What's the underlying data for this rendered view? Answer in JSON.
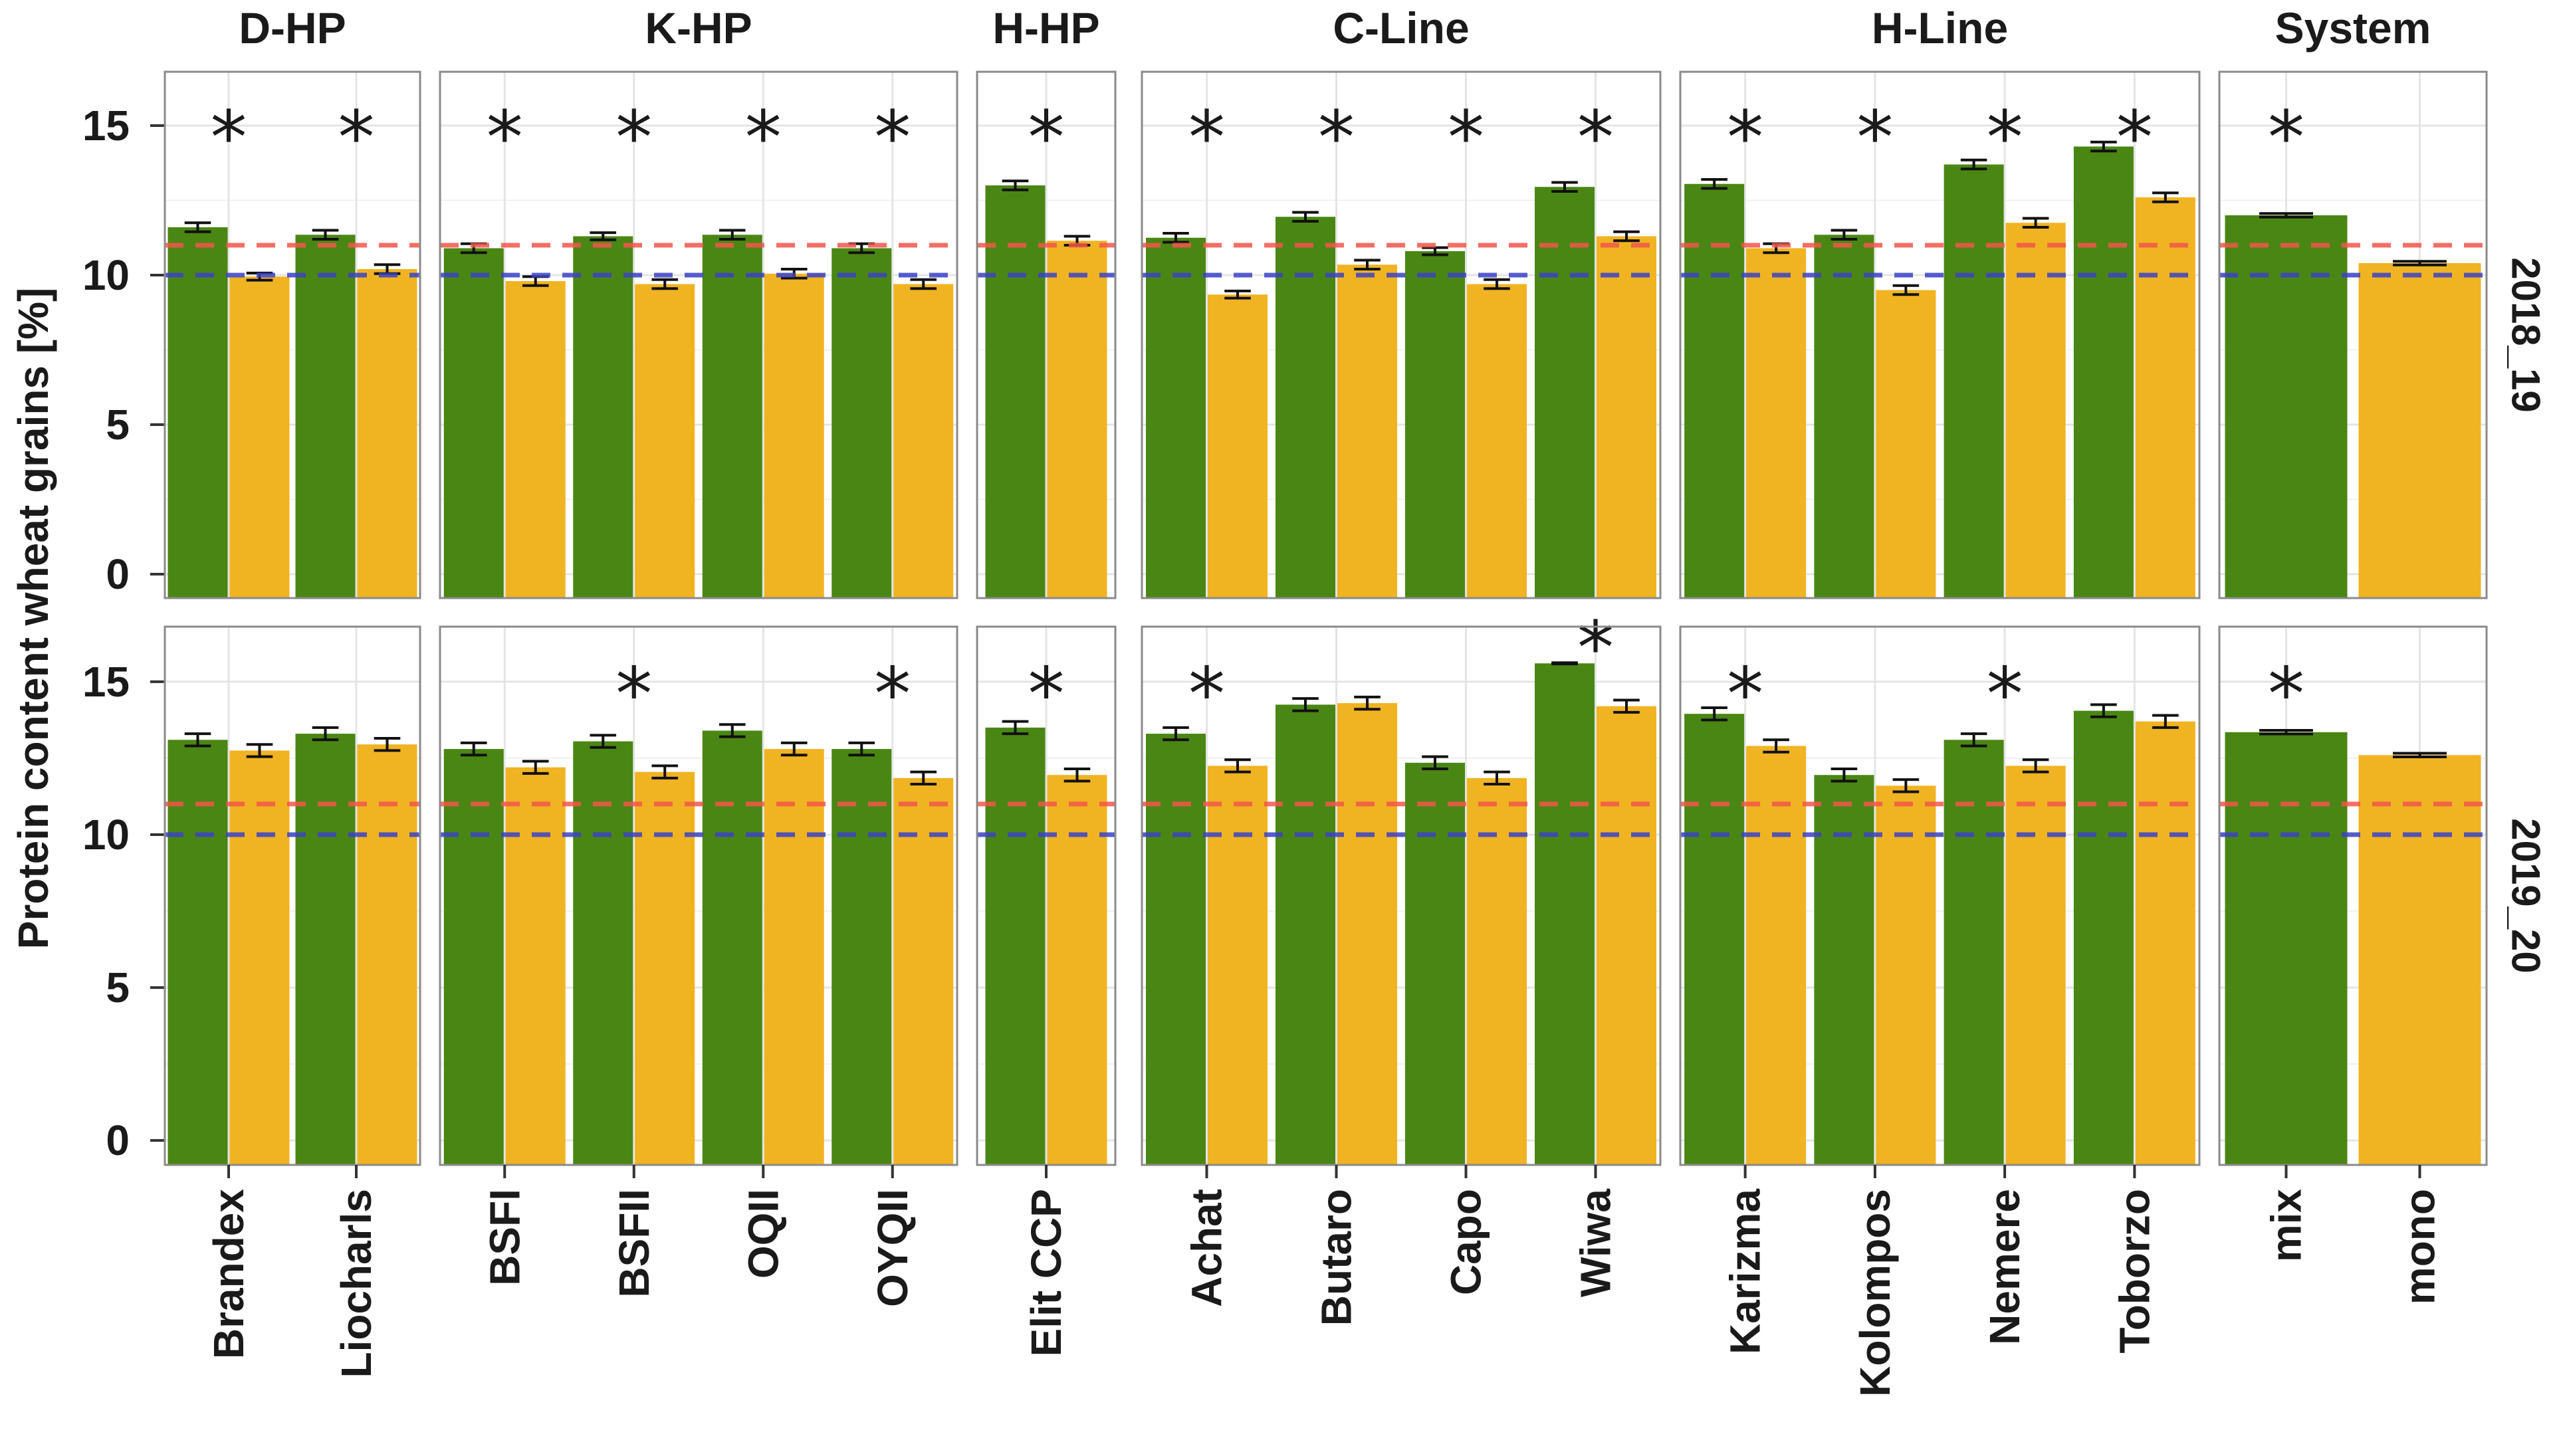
{
  "chart_data": {
    "type": "bar",
    "title": "",
    "ylabel": "Protein content wheat grains [%]",
    "xlabel": "",
    "ylim": [
      -0.8,
      16.8
    ],
    "yticks": [
      0,
      5,
      10,
      15
    ],
    "reference_lines": [
      {
        "value": 11,
        "color": "#F2574B",
        "style": "dashed"
      },
      {
        "value": 10,
        "color": "#3B43C6",
        "style": "dashed"
      }
    ],
    "series_colors": {
      "mix": "#4A8614",
      "mono": "#F0B322"
    },
    "significance_marker": "*",
    "groups": [
      {
        "name": "D-HP",
        "varieties": [
          "Brandex",
          "Liocharls"
        ]
      },
      {
        "name": "K-HP",
        "varieties": [
          "BSFI",
          "BSFII",
          "OQII",
          "OYQII"
        ]
      },
      {
        "name": "H-HP",
        "varieties": [
          "Elit CCP"
        ]
      },
      {
        "name": "C-Line",
        "varieties": [
          "Achat",
          "Butaro",
          "Capo",
          "Wiwa"
        ]
      },
      {
        "name": "H-Line",
        "varieties": [
          "Karizma",
          "Kolompos",
          "Nemere",
          "Toborzo"
        ]
      },
      {
        "name": "System",
        "varieties": [
          "mix",
          "mono"
        ]
      }
    ],
    "rows": [
      {
        "label": "2018_19",
        "values": {
          "Brandex": {
            "mix": 11.6,
            "mix_err": 0.15,
            "mono": 9.95,
            "mono_err": 0.12,
            "sig": true
          },
          "Liocharls": {
            "mix": 11.35,
            "mix_err": 0.15,
            "mono": 10.2,
            "mono_err": 0.15,
            "sig": true
          },
          "BSFI": {
            "mix": 10.9,
            "mix_err": 0.15,
            "mono": 9.8,
            "mono_err": 0.15,
            "sig": true
          },
          "BSFII": {
            "mix": 11.3,
            "mix_err": 0.12,
            "mono": 9.7,
            "mono_err": 0.15,
            "sig": true
          },
          "OQII": {
            "mix": 11.35,
            "mix_err": 0.15,
            "mono": 10.05,
            "mono_err": 0.15,
            "sig": true
          },
          "OYQII": {
            "mix": 10.9,
            "mix_err": 0.15,
            "mono": 9.7,
            "mono_err": 0.15,
            "sig": true
          },
          "Elit CCP": {
            "mix": 13.0,
            "mix_err": 0.15,
            "mono": 11.15,
            "mono_err": 0.15,
            "sig": true
          },
          "Achat": {
            "mix": 11.25,
            "mix_err": 0.15,
            "mono": 9.35,
            "mono_err": 0.12,
            "sig": true
          },
          "Butaro": {
            "mix": 11.95,
            "mix_err": 0.15,
            "mono": 10.35,
            "mono_err": 0.15,
            "sig": true
          },
          "Capo": {
            "mix": 10.8,
            "mix_err": 0.12,
            "mono": 9.7,
            "mono_err": 0.15,
            "sig": true
          },
          "Wiwa": {
            "mix": 12.95,
            "mix_err": 0.15,
            "mono": 11.3,
            "mono_err": 0.15,
            "sig": true
          },
          "Karizma": {
            "mix": 13.05,
            "mix_err": 0.15,
            "mono": 10.9,
            "mono_err": 0.15,
            "sig": true
          },
          "Kolompos": {
            "mix": 11.35,
            "mix_err": 0.15,
            "mono": 9.5,
            "mono_err": 0.15,
            "sig": true
          },
          "Nemere": {
            "mix": 13.7,
            "mix_err": 0.15,
            "mono": 11.75,
            "mono_err": 0.15,
            "sig": true
          },
          "Toborzo": {
            "mix": 14.3,
            "mix_err": 0.15,
            "mono": 12.6,
            "mono_err": 0.15,
            "sig": true
          },
          "mix": {
            "mix": 12.0,
            "mix_err": 0.06,
            "sig": true
          },
          "mono": {
            "mono": 10.4,
            "mono_err": 0.06
          }
        }
      },
      {
        "label": "2019_20",
        "values": {
          "Brandex": {
            "mix": 13.1,
            "mix_err": 0.2,
            "mono": 12.75,
            "mono_err": 0.2,
            "sig": false
          },
          "Liocharls": {
            "mix": 13.3,
            "mix_err": 0.2,
            "mono": 12.95,
            "mono_err": 0.2,
            "sig": false
          },
          "BSFI": {
            "mix": 12.8,
            "mix_err": 0.2,
            "mono": 12.2,
            "mono_err": 0.2,
            "sig": false
          },
          "BSFII": {
            "mix": 13.05,
            "mix_err": 0.2,
            "mono": 12.05,
            "mono_err": 0.2,
            "sig": true
          },
          "OQII": {
            "mix": 13.4,
            "mix_err": 0.2,
            "mono": 12.8,
            "mono_err": 0.2,
            "sig": false
          },
          "OYQII": {
            "mix": 12.8,
            "mix_err": 0.2,
            "mono": 11.85,
            "mono_err": 0.2,
            "sig": true
          },
          "Elit CCP": {
            "mix": 13.5,
            "mix_err": 0.2,
            "mono": 11.95,
            "mono_err": 0.2,
            "sig": true
          },
          "Achat": {
            "mix": 13.3,
            "mix_err": 0.2,
            "mono": 12.25,
            "mono_err": 0.2,
            "sig": true
          },
          "Butaro": {
            "mix": 14.25,
            "mix_err": 0.2,
            "mono": 14.3,
            "mono_err": 0.2,
            "sig": false
          },
          "Capo": {
            "mix": 12.35,
            "mix_err": 0.2,
            "mono": 11.85,
            "mono_err": 0.2,
            "sig": false
          },
          "Wiwa": {
            "mix": 15.6,
            "mix_err": 0.02,
            "mono": 14.2,
            "mono_err": 0.2,
            "sig": true
          },
          "Karizma": {
            "mix": 13.95,
            "mix_err": 0.2,
            "mono": 12.9,
            "mono_err": 0.2,
            "sig": true
          },
          "Kolompos": {
            "mix": 11.95,
            "mix_err": 0.2,
            "mono": 11.6,
            "mono_err": 0.2,
            "sig": false
          },
          "Nemere": {
            "mix": 13.1,
            "mix_err": 0.2,
            "mono": 12.25,
            "mono_err": 0.2,
            "sig": true
          },
          "Toborzo": {
            "mix": 14.05,
            "mix_err": 0.2,
            "mono": 13.7,
            "mono_err": 0.2,
            "sig": false
          },
          "mix": {
            "mix": 13.35,
            "mix_err": 0.06,
            "sig": true
          },
          "mono": {
            "mono": 12.6,
            "mono_err": 0.06
          }
        }
      }
    ]
  }
}
